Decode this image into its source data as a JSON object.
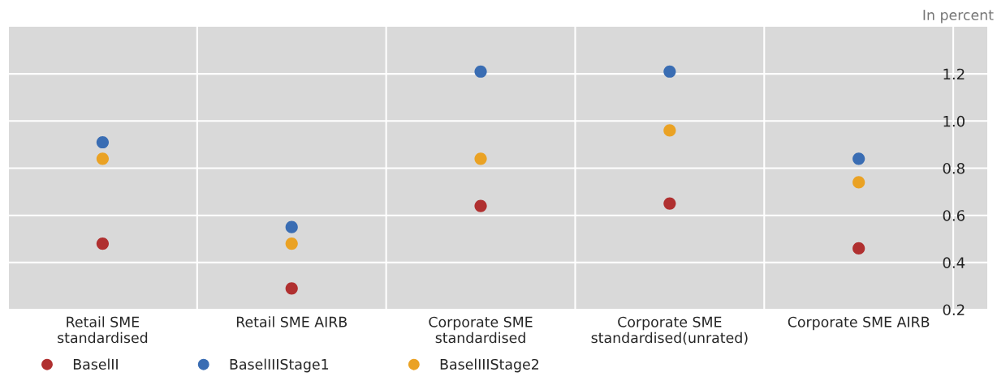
{
  "chart_data": {
    "type": "scatter",
    "categories": [
      "Retail SME\nstandardised",
      "Retail SME AIRB",
      "Corporate SME\nstandardised",
      "Corporate SME\nstandardised(unrated)",
      "Corporate SME AIRB"
    ],
    "series": [
      {
        "name": "BaselII",
        "color": "#b03030",
        "values": [
          0.48,
          0.29,
          0.64,
          0.65,
          0.46
        ]
      },
      {
        "name": "BaselIIIStage1",
        "color": "#3a6db3",
        "values": [
          0.91,
          0.55,
          1.21,
          1.21,
          0.84
        ]
      },
      {
        "name": "BaselIIIStage2",
        "color": "#eaa224",
        "values": [
          0.84,
          0.48,
          0.84,
          0.96,
          0.74
        ]
      }
    ],
    "ylim": [
      0.2,
      1.4
    ],
    "yticks": [
      {
        "value": 0.2,
        "label": "0.2"
      },
      {
        "value": 0.4,
        "label": "0.4"
      },
      {
        "value": 0.6,
        "label": "0.6"
      },
      {
        "value": 0.8,
        "label": "0.8"
      },
      {
        "value": 1.0,
        "label": "1.0"
      },
      {
        "value": 1.2,
        "label": "1.2"
      }
    ],
    "annotations": [
      "In percent"
    ],
    "grid": true,
    "legend": "bottom left",
    "marker": "circle"
  }
}
